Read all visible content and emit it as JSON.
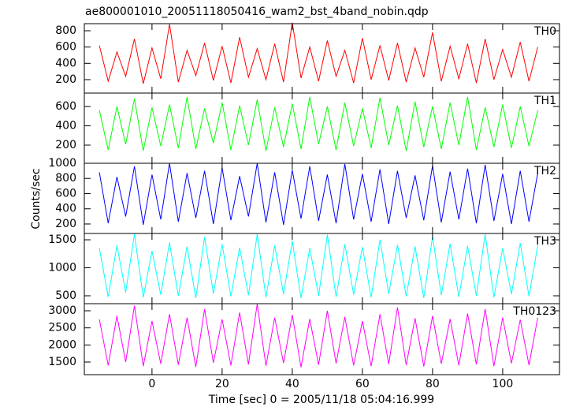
{
  "chart_data": [
    {
      "type": "line",
      "title": "ae800001010_20051118050416_wam2_bst_4band_nobin.qdp",
      "ylabel": "Counts/sec",
      "xlim": [
        -19.3,
        116.2
      ],
      "xticks": [
        0,
        20,
        40,
        60,
        80,
        100
      ],
      "ylim": [
        35,
        887
      ],
      "yticks": [
        200,
        400,
        600,
        800
      ],
      "x": [
        -15,
        -12.5,
        -10,
        -7.5,
        -5,
        -2.5,
        0,
        2.5,
        5,
        7.5,
        10,
        12.5,
        15,
        17.5,
        20,
        22.5,
        25,
        27.5,
        30,
        32.5,
        35,
        37.5,
        40,
        42.5,
        45,
        47.5,
        50,
        52.5,
        55,
        57.5,
        60,
        62.5,
        65,
        67.5,
        70,
        72.5,
        75,
        77.5,
        80,
        82.5,
        85,
        87.5,
        90,
        92.5,
        95,
        97.5,
        100,
        102.5,
        105,
        107.5,
        110
      ],
      "series": [
        {
          "name": "TH0",
          "color": "#ff0000",
          "values": [
            620,
            180,
            540,
            240,
            700,
            150,
            590,
            210,
            880,
            170,
            560,
            250,
            650,
            190,
            610,
            160,
            720,
            230,
            580,
            200,
            640,
            170,
            900,
            220,
            600,
            180,
            680,
            240,
            560,
            160,
            710,
            200,
            620,
            190,
            650,
            170,
            590,
            230,
            780,
            180,
            610,
            210,
            640,
            160,
            700,
            200,
            570,
            230,
            660,
            180,
            600
          ]
        }
      ]
    },
    {
      "type": "line",
      "xlim": [
        -19.3,
        116.2
      ],
      "xticks": [
        0,
        20,
        40,
        60,
        80,
        100
      ],
      "ylim": [
        12,
        739
      ],
      "yticks": [
        200,
        400,
        600
      ],
      "x": [
        -15,
        -12.5,
        -10,
        -7.5,
        -5,
        -2.5,
        0,
        2.5,
        5,
        7.5,
        10,
        12.5,
        15,
        17.5,
        20,
        22.5,
        25,
        27.5,
        30,
        32.5,
        35,
        37.5,
        40,
        42.5,
        45,
        47.5,
        50,
        52.5,
        55,
        57.5,
        60,
        62.5,
        65,
        67.5,
        70,
        72.5,
        75,
        77.5,
        80,
        82.5,
        85,
        87.5,
        90,
        92.5,
        95,
        97.5,
        100,
        102.5,
        105,
        107.5,
        110
      ],
      "series": [
        {
          "name": "TH1",
          "color": "#00ff00",
          "values": [
            560,
            150,
            600,
            210,
            680,
            140,
            590,
            190,
            620,
            170,
            700,
            160,
            580,
            220,
            640,
            150,
            610,
            200,
            670,
            140,
            590,
            180,
            630,
            160,
            700,
            210,
            600,
            150,
            640,
            190,
            580,
            170,
            690,
            200,
            610,
            140,
            650,
            180,
            600,
            160,
            640,
            200,
            700,
            150,
            590,
            180,
            620,
            170,
            600,
            190,
            560
          ]
        }
      ]
    },
    {
      "type": "line",
      "xlim": [
        -19.3,
        116.2
      ],
      "xticks": [
        0,
        20,
        40,
        60,
        80,
        100
      ],
      "ylim": [
        75,
        1000
      ],
      "yticks": [
        200,
        400,
        600,
        800,
        1000
      ],
      "x": [
        -15,
        -12.5,
        -10,
        -7.5,
        -5,
        -2.5,
        0,
        2.5,
        5,
        7.5,
        10,
        12.5,
        15,
        17.5,
        20,
        22.5,
        25,
        27.5,
        30,
        32.5,
        35,
        37.5,
        40,
        42.5,
        45,
        47.5,
        50,
        52.5,
        55,
        57.5,
        60,
        62.5,
        65,
        67.5,
        70,
        72.5,
        75,
        77.5,
        80,
        82.5,
        85,
        87.5,
        90,
        92.5,
        95,
        97.5,
        100,
        102.5,
        105,
        107.5,
        110
      ],
      "series": [
        {
          "name": "TH2",
          "color": "#0000ff",
          "values": [
            880,
            210,
            820,
            300,
            960,
            190,
            850,
            260,
            1000,
            230,
            870,
            280,
            900,
            200,
            940,
            250,
            830,
            300,
            1000,
            220,
            880,
            190,
            910,
            270,
            960,
            240,
            850,
            210,
            990,
            260,
            860,
            230,
            920,
            200,
            900,
            280,
            840,
            250,
            970,
            220,
            890,
            260,
            930,
            210,
            980,
            240,
            860,
            200,
            900,
            230,
            870
          ]
        }
      ]
    },
    {
      "type": "line",
      "xlim": [
        -19.3,
        116.2
      ],
      "xticks": [
        0,
        20,
        40,
        60,
        80,
        100
      ],
      "ylim": [
        359,
        1613
      ],
      "yticks": [
        500,
        1000,
        1500
      ],
      "x": [
        -15,
        -12.5,
        -10,
        -7.5,
        -5,
        -2.5,
        0,
        2.5,
        5,
        7.5,
        10,
        12.5,
        15,
        17.5,
        20,
        22.5,
        25,
        27.5,
        30,
        32.5,
        35,
        37.5,
        40,
        42.5,
        45,
        47.5,
        50,
        52.5,
        55,
        57.5,
        60,
        62.5,
        65,
        67.5,
        70,
        72.5,
        75,
        77.5,
        80,
        82.5,
        85,
        87.5,
        90,
        92.5,
        95,
        97.5,
        100,
        102.5,
        105,
        107.5,
        110
      ],
      "series": [
        {
          "name": "TH3",
          "color": "#00ffff",
          "values": [
            1350,
            480,
            1400,
            560,
            1600,
            470,
            1300,
            520,
            1450,
            500,
            1380,
            460,
            1550,
            540,
            1420,
            490,
            1360,
            510,
            1600,
            470,
            1400,
            530,
            1480,
            460,
            1350,
            500,
            1590,
            480,
            1420,
            520,
            1370,
            470,
            1500,
            540,
            1410,
            490,
            1380,
            460,
            1560,
            510,
            1430,
            480,
            1390,
            500,
            1600,
            470,
            1350,
            530,
            1440,
            490,
            1400
          ]
        }
      ]
    },
    {
      "type": "line",
      "xlabel": "Time [sec] 0 = 2005/11/18 05:04:16.999",
      "xlim": [
        -19.3,
        116.2
      ],
      "xticks": [
        0,
        20,
        40,
        60,
        80,
        100
      ],
      "ylim": [
        1131,
        3208
      ],
      "yticks": [
        1500,
        2000,
        2500,
        3000
      ],
      "x": [
        -15,
        -12.5,
        -10,
        -7.5,
        -5,
        -2.5,
        0,
        2.5,
        5,
        7.5,
        10,
        12.5,
        15,
        17.5,
        20,
        22.5,
        25,
        27.5,
        30,
        32.5,
        35,
        37.5,
        40,
        42.5,
        45,
        47.5,
        50,
        52.5,
        55,
        57.5,
        60,
        62.5,
        65,
        67.5,
        70,
        72.5,
        75,
        77.5,
        80,
        82.5,
        85,
        87.5,
        90,
        92.5,
        95,
        97.5,
        100,
        102.5,
        105,
        107.5,
        110
      ],
      "series": [
        {
          "name": "TH0123",
          "color": "#ff00ff",
          "values": [
            2750,
            1400,
            2850,
            1500,
            3150,
            1380,
            2700,
            1450,
            2900,
            1420,
            2800,
            1360,
            3050,
            1480,
            2750,
            1400,
            2950,
            1430,
            3200,
            1390,
            2800,
            1470,
            2880,
            1350,
            2760,
            1420,
            3000,
            1460,
            2820,
            1400,
            2700,
            1380,
            2900,
            1440,
            3100,
            1410,
            2780,
            1370,
            2850,
            1450,
            2760,
            1400,
            2920,
            1430,
            3050,
            1380,
            2800,
            1460,
            2740,
            1410,
            2800
          ]
        }
      ]
    }
  ]
}
